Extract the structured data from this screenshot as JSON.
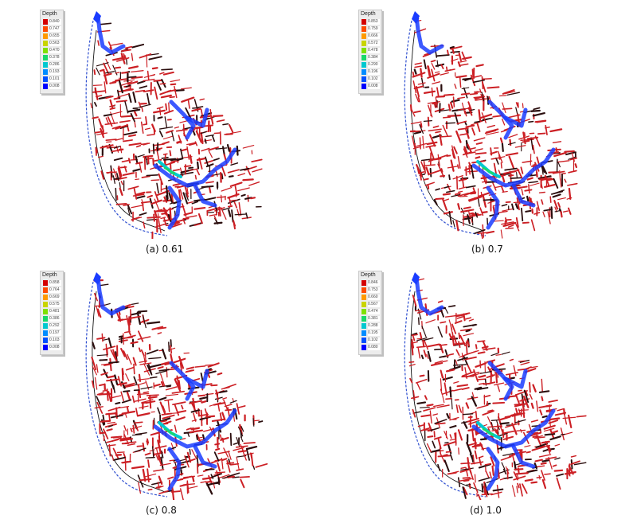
{
  "legend_title": "Depth",
  "colors": [
    "#d40000",
    "#ff4a00",
    "#ff9a00",
    "#c9d400",
    "#7fe000",
    "#19d86a",
    "#00c8d0",
    "#008cff",
    "#0050ff",
    "#0000ff"
  ],
  "network_color": "#cc1f24",
  "flood_color": "#1a3cff",
  "panels": [
    {
      "caption": "(a) 0.61",
      "legend_values": [
        "0.840",
        "0.747",
        "0.655",
        "0.563",
        "0.470",
        "0.378",
        "0.286",
        "0.193",
        "0.101",
        "0.008"
      ]
    },
    {
      "caption": "(b) 0.7",
      "legend_values": [
        "0.853",
        "0.759",
        "0.666",
        "0.572",
        "0.478",
        "0.384",
        "0.290",
        "0.196",
        "0.102",
        "0.008"
      ]
    },
    {
      "caption": "(c) 0.8",
      "legend_values": [
        "0.858",
        "0.764",
        "0.669",
        "0.575",
        "0.481",
        "0.386",
        "0.292",
        "0.197",
        "0.103",
        "0.008"
      ]
    },
    {
      "caption": "(d) 1.0",
      "legend_values": [
        "0.846",
        "0.753",
        "0.660",
        "0.567",
        "0.474",
        "0.381",
        "0.288",
        "0.195",
        "0.102",
        "0.080"
      ]
    }
  ]
}
